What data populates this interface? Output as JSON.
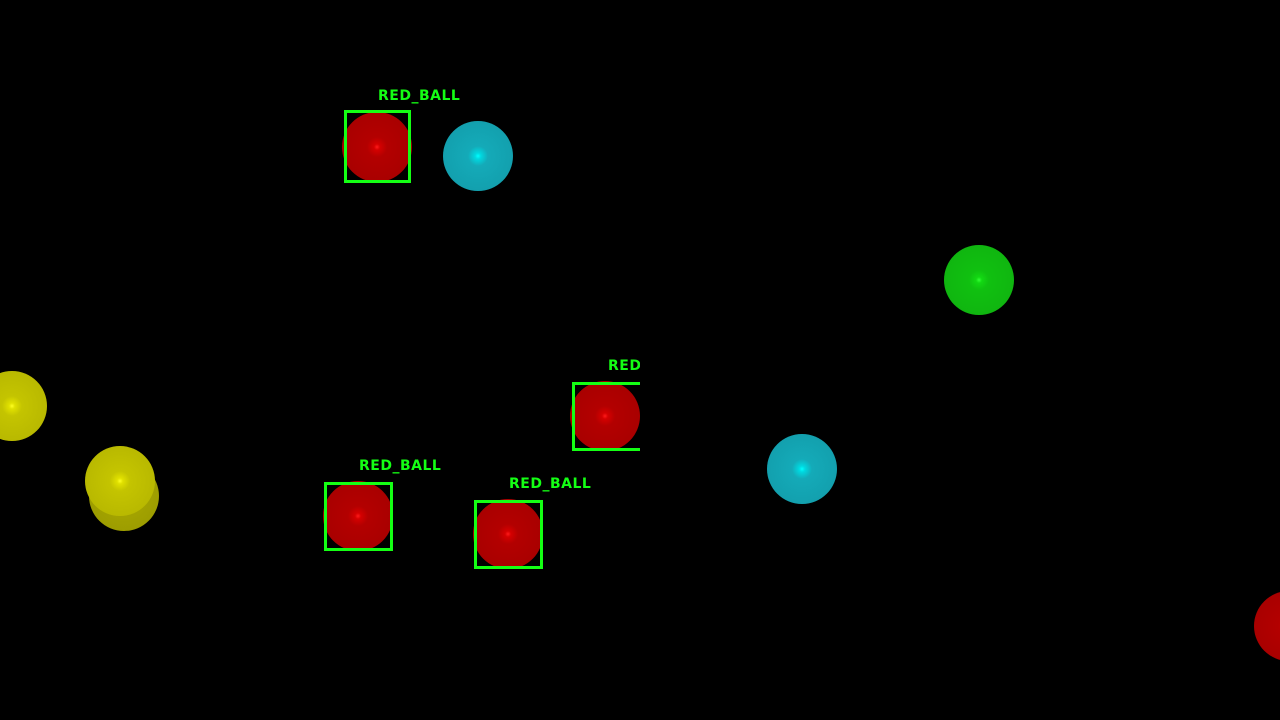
{
  "colors": {
    "background": "#000000",
    "detection_box": "#14ff14",
    "red_ball": "#b30000",
    "cyan_ball": "#14aab8",
    "green_ball": "#10c010",
    "yellow_ball": "#c4c400"
  },
  "detections": [
    {
      "label": "RED_BALL"
    },
    {
      "label": "RED_BALL"
    },
    {
      "label": "RED_BALL"
    },
    {
      "label": "RED_BALL"
    }
  ],
  "balls": [
    {
      "color": "red"
    },
    {
      "color": "red"
    },
    {
      "color": "red"
    },
    {
      "color": "red"
    },
    {
      "color": "red"
    },
    {
      "color": "cyan"
    },
    {
      "color": "cyan"
    },
    {
      "color": "green"
    },
    {
      "color": "yellow"
    },
    {
      "color": "yellow"
    },
    {
      "color": "yellow"
    }
  ]
}
